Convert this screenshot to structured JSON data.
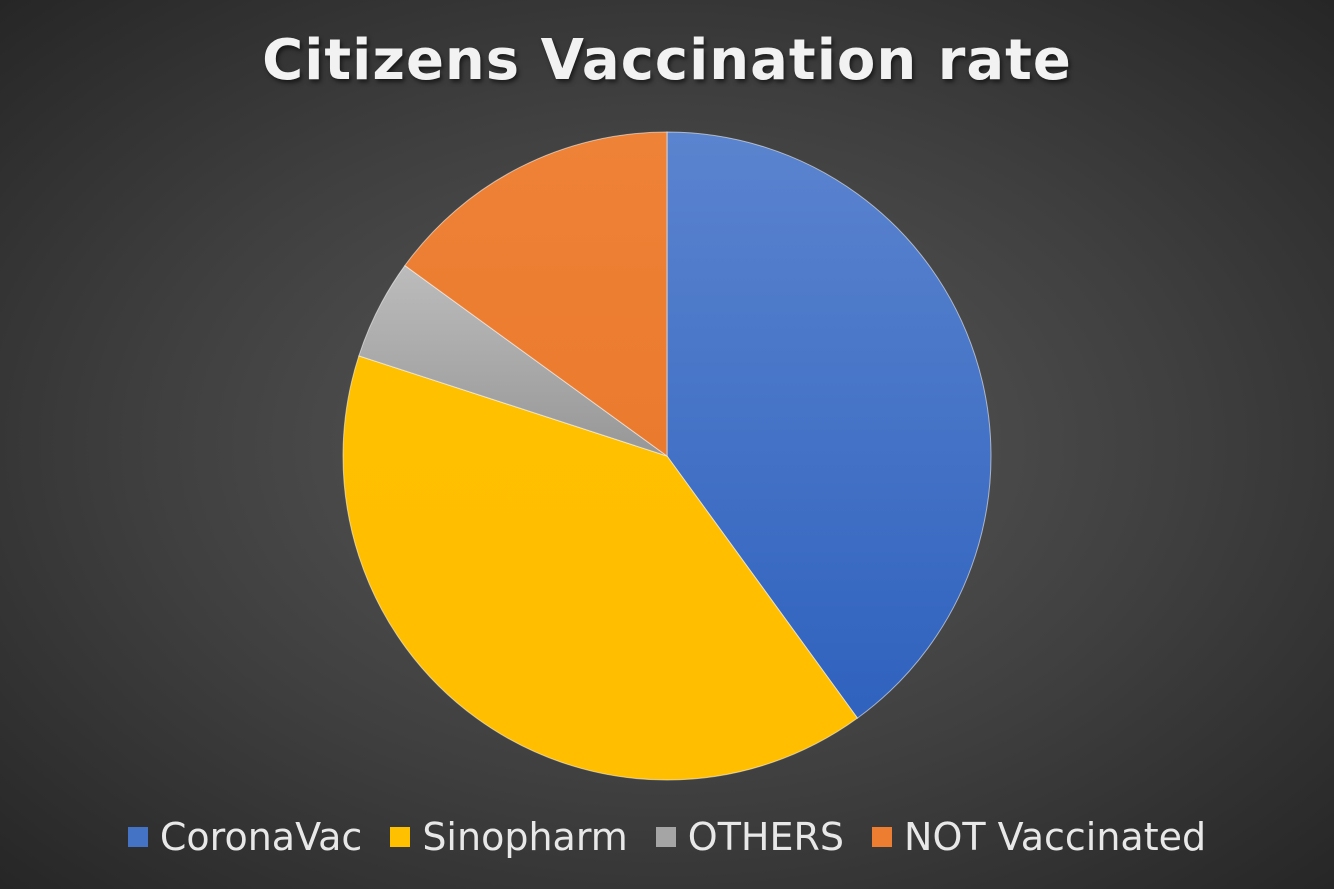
{
  "chart_data": {
    "type": "pie",
    "title": "Citizens Vaccination rate",
    "categories": [
      "CoronaVac",
      "Sinopharm",
      "OTHERS",
      "NOT Vaccinated"
    ],
    "values": [
      40,
      40,
      5,
      15
    ],
    "colors": [
      "#4472c4",
      "#ffc000",
      "#a5a5a5",
      "#ed7d31"
    ],
    "legend_position": "bottom",
    "start_angle_deg": 0,
    "direction": "clockwise"
  }
}
